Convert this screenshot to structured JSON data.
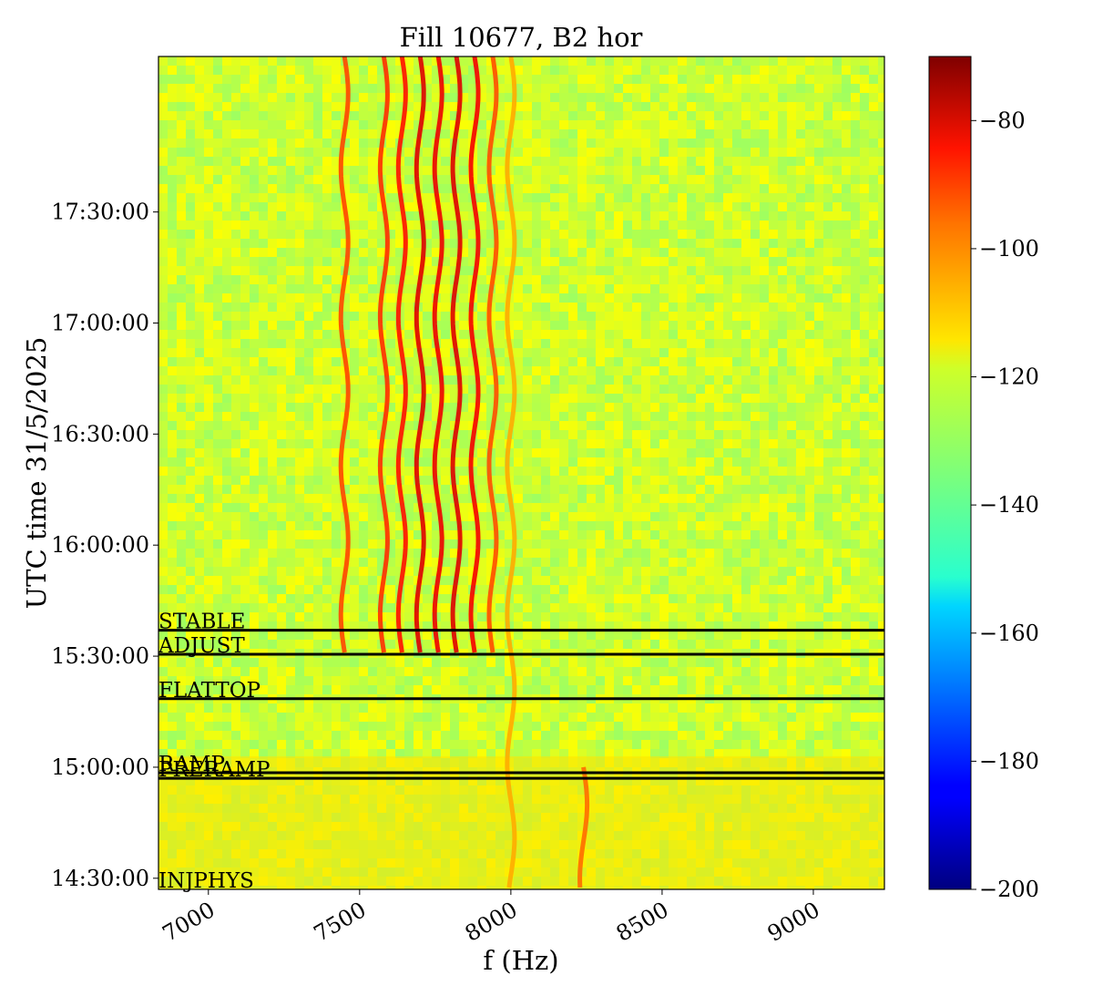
{
  "chart_data": {
    "type": "heatmap",
    "title": "Fill 10677, B2 hor",
    "xlabel": "f (Hz)",
    "ylabel": "UTC time 31/5/2025",
    "xlim": [
      6835,
      9235
    ],
    "ylim": [
      "14:27:00",
      "18:12:00"
    ],
    "x_ticks": [
      7000,
      7500,
      8000,
      8500,
      9000
    ],
    "x_tick_labels": [
      "7000",
      "7500",
      "8000",
      "8500",
      "9000"
    ],
    "y_ticks": [
      "14:30:00",
      "15:00:00",
      "15:30:00",
      "16:00:00",
      "16:30:00",
      "17:00:00",
      "17:30:00"
    ],
    "y_tick_labels": [
      "14:30:00",
      "15:00:00",
      "15:30:00",
      "16:00:00",
      "16:30:00",
      "17:00:00",
      "17:30:00"
    ],
    "colormap": "jet",
    "color_range": [
      -200,
      -70
    ],
    "colorbar_ticks": [
      -200,
      -180,
      -160,
      -140,
      -120,
      -100,
      -80
    ],
    "colorbar_tick_labels": [
      "−200",
      "−180",
      "−160",
      "−140",
      "−120",
      "−100",
      "−80"
    ],
    "background_level_db": -125,
    "grid": false,
    "beam_modes": [
      {
        "label": "INJPHYS",
        "time": "14:28:00"
      },
      {
        "label": "PRERAMP",
        "time": "14:57:00"
      },
      {
        "label": "RAMP",
        "time": "14:58:30"
      },
      {
        "label": "FLATTOP",
        "time": "15:18:30"
      },
      {
        "label": "ADJUST",
        "time": "15:30:30"
      },
      {
        "label": "STABLE",
        "time": "15:37:00"
      }
    ],
    "spectral_lines": [
      {
        "f": 7700,
        "level_db": -82,
        "from": "15:30:30",
        "to": "18:12:00"
      },
      {
        "f": 7760,
        "level_db": -84,
        "from": "15:30:30",
        "to": "18:12:00"
      },
      {
        "f": 7820,
        "level_db": -82,
        "from": "15:30:30",
        "to": "18:12:00"
      },
      {
        "f": 7880,
        "level_db": -85,
        "from": "15:30:30",
        "to": "18:12:00"
      },
      {
        "f": 7640,
        "level_db": -88,
        "from": "15:30:30",
        "to": "18:12:00"
      },
      {
        "f": 7580,
        "level_db": -92,
        "from": "15:30:30",
        "to": "18:12:00"
      },
      {
        "f": 7940,
        "level_db": -96,
        "from": "15:30:30",
        "to": "18:12:00"
      },
      {
        "f": 7450,
        "level_db": -95,
        "from": "15:30:30",
        "to": "18:12:00"
      },
      {
        "f": 8000,
        "level_db": -108,
        "from": "14:27:00",
        "to": "18:12:00"
      },
      {
        "f": 8240,
        "level_db": -100,
        "from": "14:27:00",
        "to": "15:00:00"
      }
    ]
  }
}
